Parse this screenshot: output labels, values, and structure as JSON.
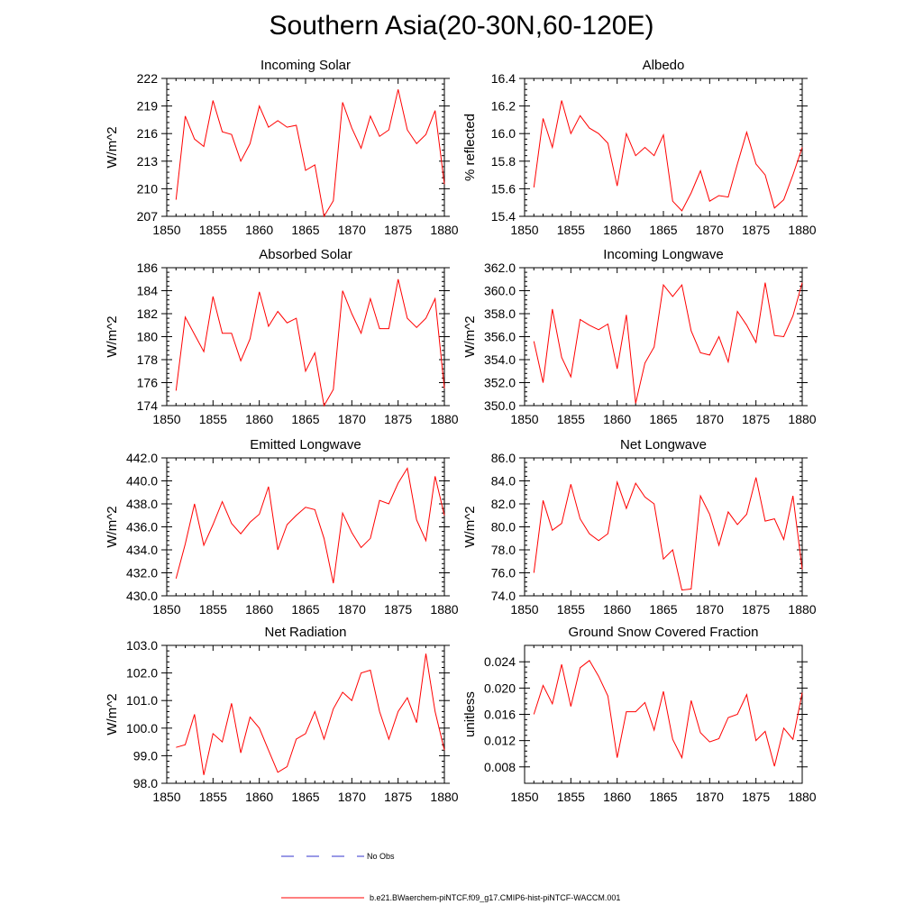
{
  "page": {
    "title": "Southern Asia(20-30N,60-120E)"
  },
  "legend": {
    "no_obs_label": "No Obs",
    "no_obs_color": "#3333cc",
    "model_label": "b.e21.BWaerchem-piNTCF.f09_g17.CMIP6-hist-piNTCF-WACCM.001",
    "model_color": "#ff0000"
  },
  "chart_data": [
    {
      "type": "line",
      "title": "Incoming Solar",
      "ylabel": "W/m^2",
      "xlabel": "",
      "xlim": [
        1850,
        1880
      ],
      "ylim": [
        207,
        222
      ],
      "xticks": [
        "1850",
        "1855",
        "1860",
        "1865",
        "1870",
        "1875",
        "1880"
      ],
      "yticks": [
        "207",
        "210",
        "213",
        "216",
        "219",
        "222"
      ],
      "x": [
        1851,
        1852,
        1853,
        1854,
        1855,
        1856,
        1857,
        1858,
        1859,
        1860,
        1861,
        1862,
        1863,
        1864,
        1865,
        1866,
        1867,
        1868,
        1869,
        1870,
        1871,
        1872,
        1873,
        1874,
        1875,
        1876,
        1877,
        1878,
        1879,
        1880
      ],
      "series": [
        {
          "values": [
            208.8,
            217.9,
            215.4,
            214.6,
            219.6,
            216.2,
            215.9,
            213.0,
            214.9,
            219.0,
            216.7,
            217.4,
            216.7,
            216.9,
            212.0,
            212.6,
            207.0,
            208.7,
            219.4,
            216.6,
            214.4,
            217.9,
            215.7,
            216.4,
            220.8,
            216.4,
            214.9,
            215.9,
            218.5,
            210.5
          ],
          "color": "#ff0000"
        }
      ]
    },
    {
      "type": "line",
      "title": "Albedo",
      "ylabel": "% reflected",
      "xlabel": "",
      "xlim": [
        1850,
        1880
      ],
      "ylim": [
        15.4,
        16.4
      ],
      "xticks": [
        "1850",
        "1855",
        "1860",
        "1865",
        "1870",
        "1875",
        "1880"
      ],
      "yticks": [
        "15.4",
        "15.6",
        "15.8",
        "16.0",
        "16.2",
        "16.4"
      ],
      "x": [
        1851,
        1852,
        1853,
        1854,
        1855,
        1856,
        1857,
        1858,
        1859,
        1860,
        1861,
        1862,
        1863,
        1864,
        1865,
        1866,
        1867,
        1868,
        1869,
        1870,
        1871,
        1872,
        1873,
        1874,
        1875,
        1876,
        1877,
        1878,
        1879,
        1880
      ],
      "series": [
        {
          "values": [
            15.61,
            16.11,
            15.9,
            16.24,
            16.0,
            16.13,
            16.04,
            16.0,
            15.93,
            15.62,
            16.0,
            15.84,
            15.9,
            15.84,
            15.99,
            15.51,
            15.44,
            15.57,
            15.73,
            15.51,
            15.55,
            15.54,
            15.78,
            16.01,
            15.78,
            15.7,
            15.46,
            15.52,
            15.7,
            15.9
          ],
          "color": "#ff0000"
        }
      ]
    },
    {
      "type": "line",
      "title": "Absorbed Solar",
      "ylabel": "W/m^2",
      "xlabel": "",
      "xlim": [
        1850,
        1880
      ],
      "ylim": [
        174,
        186
      ],
      "xticks": [
        "1850",
        "1855",
        "1860",
        "1865",
        "1870",
        "1875",
        "1880"
      ],
      "yticks": [
        "174",
        "176",
        "178",
        "180",
        "182",
        "184",
        "186"
      ],
      "x": [
        1851,
        1852,
        1853,
        1854,
        1855,
        1856,
        1857,
        1858,
        1859,
        1860,
        1861,
        1862,
        1863,
        1864,
        1865,
        1866,
        1867,
        1868,
        1869,
        1870,
        1871,
        1872,
        1873,
        1874,
        1875,
        1876,
        1877,
        1878,
        1879,
        1880
      ],
      "series": [
        {
          "values": [
            175.3,
            181.7,
            180.2,
            178.7,
            183.5,
            180.3,
            180.3,
            177.9,
            179.8,
            183.9,
            180.9,
            182.2,
            181.2,
            181.6,
            177.0,
            178.6,
            174.0,
            175.4,
            184.0,
            182.0,
            180.3,
            183.3,
            180.7,
            180.7,
            185.0,
            181.6,
            180.8,
            181.6,
            183.3,
            175.5
          ],
          "color": "#ff0000"
        }
      ]
    },
    {
      "type": "line",
      "title": "Incoming Longwave",
      "ylabel": "W/m^2",
      "xlabel": "",
      "xlim": [
        1850,
        1880
      ],
      "ylim": [
        350,
        362
      ],
      "xticks": [
        "1850",
        "1855",
        "1860",
        "1865",
        "1870",
        "1875",
        "1880"
      ],
      "yticks": [
        "350.0",
        "352.0",
        "354.0",
        "356.0",
        "358.0",
        "360.0",
        "362.0"
      ],
      "x": [
        1851,
        1852,
        1853,
        1854,
        1855,
        1856,
        1857,
        1858,
        1859,
        1860,
        1861,
        1862,
        1863,
        1864,
        1865,
        1866,
        1867,
        1868,
        1869,
        1870,
        1871,
        1872,
        1873,
        1874,
        1875,
        1876,
        1877,
        1878,
        1879,
        1880
      ],
      "series": [
        {
          "values": [
            355.6,
            352.0,
            358.4,
            354.2,
            352.5,
            357.5,
            357.0,
            356.6,
            357.1,
            353.2,
            357.9,
            350.2,
            353.7,
            355.1,
            360.5,
            359.5,
            360.5,
            356.5,
            354.6,
            354.4,
            356.0,
            353.8,
            358.2,
            357.0,
            355.5,
            360.7,
            356.1,
            356.0,
            357.8,
            360.7
          ],
          "color": "#ff0000"
        }
      ]
    },
    {
      "type": "line",
      "title": "Emitted Longwave",
      "ylabel": "W/m^2",
      "xlabel": "",
      "xlim": [
        1850,
        1880
      ],
      "ylim": [
        430,
        442
      ],
      "xticks": [
        "1850",
        "1855",
        "1860",
        "1865",
        "1870",
        "1875",
        "1880"
      ],
      "yticks": [
        "430.0",
        "432.0",
        "434.0",
        "436.0",
        "438.0",
        "440.0",
        "442.0"
      ],
      "x": [
        1851,
        1852,
        1853,
        1854,
        1855,
        1856,
        1857,
        1858,
        1859,
        1860,
        1861,
        1862,
        1863,
        1864,
        1865,
        1866,
        1867,
        1868,
        1869,
        1870,
        1871,
        1872,
        1873,
        1874,
        1875,
        1876,
        1877,
        1878,
        1879,
        1880
      ],
      "series": [
        {
          "values": [
            431.5,
            434.5,
            438.0,
            434.4,
            436.2,
            438.2,
            436.3,
            435.4,
            436.4,
            437.1,
            439.5,
            434.0,
            436.2,
            437.0,
            437.7,
            437.5,
            435.0,
            431.1,
            437.2,
            435.5,
            434.2,
            435.0,
            438.3,
            438.0,
            439.8,
            441.1,
            436.6,
            434.8,
            440.4,
            437.0
          ],
          "color": "#ff0000"
        }
      ]
    },
    {
      "type": "line",
      "title": "Net Longwave",
      "ylabel": "W/m^2",
      "xlabel": "",
      "xlim": [
        1850,
        1880
      ],
      "ylim": [
        74,
        86
      ],
      "xticks": [
        "1850",
        "1855",
        "1860",
        "1865",
        "1870",
        "1875",
        "1880"
      ],
      "yticks": [
        "74.0",
        "76.0",
        "78.0",
        "80.0",
        "82.0",
        "84.0",
        "86.0"
      ],
      "x": [
        1851,
        1852,
        1853,
        1854,
        1855,
        1856,
        1857,
        1858,
        1859,
        1860,
        1861,
        1862,
        1863,
        1864,
        1865,
        1866,
        1867,
        1868,
        1869,
        1870,
        1871,
        1872,
        1873,
        1874,
        1875,
        1876,
        1877,
        1878,
        1879,
        1880
      ],
      "series": [
        {
          "values": [
            76.0,
            82.3,
            79.7,
            80.3,
            83.7,
            80.7,
            79.4,
            78.8,
            79.4,
            83.9,
            81.6,
            83.8,
            82.6,
            82.0,
            77.2,
            78.0,
            74.5,
            74.6,
            82.7,
            81.1,
            78.4,
            81.3,
            80.2,
            81.1,
            84.3,
            80.5,
            80.7,
            78.9,
            82.7,
            76.3
          ],
          "color": "#ff0000"
        }
      ]
    },
    {
      "type": "line",
      "title": "Net Radiation",
      "ylabel": "W/m^2",
      "xlabel": "",
      "xlim": [
        1850,
        1880
      ],
      "ylim": [
        98,
        103
      ],
      "xticks": [
        "1850",
        "1855",
        "1860",
        "1865",
        "1870",
        "1875",
        "1880"
      ],
      "yticks": [
        "98.0",
        "99.0",
        "100.0",
        "101.0",
        "102.0",
        "103.0"
      ],
      "x": [
        1851,
        1852,
        1853,
        1854,
        1855,
        1856,
        1857,
        1858,
        1859,
        1860,
        1861,
        1862,
        1863,
        1864,
        1865,
        1866,
        1867,
        1868,
        1869,
        1870,
        1871,
        1872,
        1873,
        1874,
        1875,
        1876,
        1877,
        1878,
        1879,
        1880
      ],
      "series": [
        {
          "values": [
            99.3,
            99.4,
            100.5,
            98.3,
            99.8,
            99.5,
            100.9,
            99.1,
            100.4,
            100.0,
            99.2,
            98.4,
            98.6,
            99.6,
            99.8,
            100.6,
            99.6,
            100.7,
            101.3,
            101.0,
            102.0,
            102.1,
            100.6,
            99.6,
            100.6,
            101.1,
            100.2,
            102.7,
            100.6,
            99.2
          ],
          "color": "#ff0000"
        }
      ]
    },
    {
      "type": "line",
      "title": "Ground Snow Covered Fraction",
      "ylabel": "unitless",
      "xlabel": "",
      "xlim": [
        1850,
        1880
      ],
      "ylim": [
        0.0055,
        0.0265
      ],
      "xticks": [
        "1850",
        "1855",
        "1860",
        "1865",
        "1870",
        "1875",
        "1880"
      ],
      "yticks": [
        "0.008",
        "0.012",
        "0.016",
        "0.020",
        "0.024"
      ],
      "ytick_values": [
        0.008,
        0.012,
        0.016,
        0.02,
        0.024
      ],
      "x": [
        1851,
        1852,
        1853,
        1854,
        1855,
        1856,
        1857,
        1858,
        1859,
        1860,
        1861,
        1862,
        1863,
        1864,
        1865,
        1866,
        1867,
        1868,
        1869,
        1870,
        1871,
        1872,
        1873,
        1874,
        1875,
        1876,
        1877,
        1878,
        1879,
        1880
      ],
      "series": [
        {
          "values": [
            0.016,
            0.0204,
            0.0176,
            0.0236,
            0.0172,
            0.0231,
            0.0242,
            0.0218,
            0.0188,
            0.0094,
            0.0164,
            0.0164,
            0.0178,
            0.0136,
            0.0195,
            0.0122,
            0.0094,
            0.0181,
            0.0132,
            0.0118,
            0.0123,
            0.0155,
            0.016,
            0.019,
            0.012,
            0.0134,
            0.0081,
            0.0139,
            0.0122,
            0.0193
          ],
          "color": "#ff0000"
        }
      ]
    }
  ]
}
